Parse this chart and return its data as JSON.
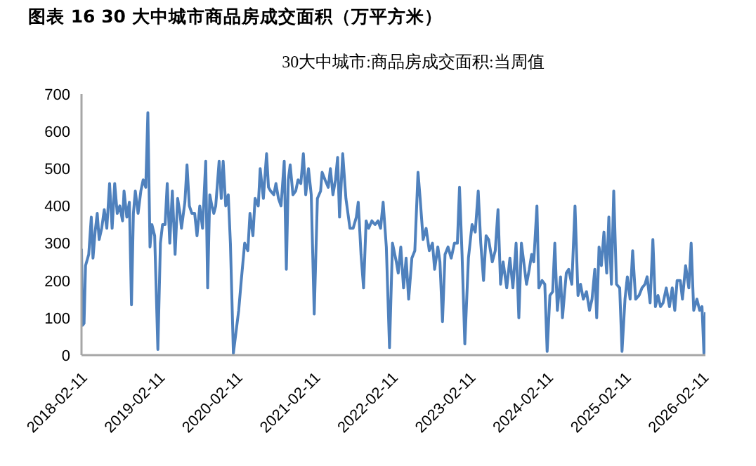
{
  "chart_data": {
    "type": "line",
    "title": "图表 16 30 大中城市商品房成交面积（万平方米）",
    "subtitle": "30大中城市:商品房成交面积:当周值",
    "x": [
      "2018-02-11",
      "2018-02-16",
      "2018-02-23",
      "2018-03-02",
      "2018-03-17",
      "2018-03-29",
      "2018-04-06",
      "2018-04-16",
      "2018-04-26",
      "2018-05-05",
      "2018-05-17",
      "2018-05-29",
      "2018-06-10",
      "2018-06-23",
      "2018-07-05",
      "2018-07-17",
      "2018-07-29",
      "2018-08-10",
      "2018-08-23",
      "2018-08-30",
      "2018-09-12",
      "2018-09-24",
      "2018-10-04",
      "2018-10-13",
      "2018-10-22",
      "2018-11-04",
      "2018-11-17",
      "2018-11-28",
      "2018-12-10",
      "2018-12-20",
      "2018-12-30",
      "2019-01-08",
      "2019-01-21",
      "2019-02-05",
      "2019-02-17",
      "2019-02-27",
      "2019-03-11",
      "2019-03-21",
      "2019-04-02",
      "2019-04-14",
      "2019-04-27",
      "2019-05-09",
      "2019-05-20",
      "2019-05-27",
      "2019-06-12",
      "2019-06-22",
      "2019-07-03",
      "2019-07-15",
      "2019-07-28",
      "2019-08-08",
      "2019-08-21",
      "2019-09-03",
      "2019-09-18",
      "2019-09-27",
      "2019-10-07",
      "2019-10-17",
      "2019-10-26",
      "2019-11-04",
      "2019-11-20",
      "2019-11-30",
      "2019-12-09",
      "2019-12-21",
      "2020-01-02",
      "2020-01-12",
      "2020-01-26",
      "2020-02-20",
      "2020-03-03",
      "2020-03-19",
      "2020-04-03",
      "2020-04-13",
      "2020-04-27",
      "2020-05-07",
      "2020-05-22",
      "2020-05-31",
      "2020-06-15",
      "2020-06-30",
      "2020-07-09",
      "2020-07-19",
      "2020-08-03",
      "2020-08-13",
      "2020-08-25",
      "2020-09-06",
      "2020-09-21",
      "2020-10-01",
      "2020-10-10",
      "2020-10-19",
      "2020-11-01",
      "2020-11-14",
      "2020-11-25",
      "2020-12-08",
      "2020-12-20",
      "2020-12-31",
      "2021-01-13",
      "2021-01-26",
      "2021-02-09",
      "2021-02-24",
      "2021-03-11",
      "2021-03-18",
      "2021-04-01",
      "2021-04-16",
      "2021-04-26",
      "2021-05-08",
      "2021-05-20",
      "2021-05-30",
      "2021-06-08",
      "2021-06-23",
      "2021-07-08",
      "2021-07-27",
      "2021-08-11",
      "2021-08-26",
      "2021-09-04",
      "2021-09-17",
      "2021-09-29",
      "2021-10-11",
      "2021-10-23",
      "2021-11-07",
      "2021-11-22",
      "2021-12-06",
      "2021-12-18",
      "2021-12-30",
      "2022-01-14",
      "2022-01-29",
      "2022-02-12",
      "2022-03-02",
      "2022-03-11",
      "2022-03-23",
      "2022-04-05",
      "2022-04-17",
      "2022-04-29",
      "2022-05-14",
      "2022-05-28",
      "2022-06-12",
      "2022-06-22",
      "2022-07-06",
      "2022-07-20",
      "2022-08-04",
      "2022-08-19",
      "2022-08-29",
      "2022-09-13",
      "2022-09-23",
      "2022-10-05",
      "2022-10-17",
      "2022-10-31",
      "2022-11-15",
      "2022-11-30",
      "2022-12-14",
      "2022-12-24",
      "2023-01-05",
      "2023-01-18",
      "2023-02-04",
      "2023-02-21",
      "2023-03-08",
      "2023-03-22",
      "2023-04-03",
      "2023-04-16",
      "2023-04-28",
      "2023-05-10",
      "2023-05-27",
      "2023-06-10",
      "2023-06-23",
      "2023-07-05",
      "2023-07-17",
      "2023-08-03",
      "2023-08-18",
      "2023-09-01",
      "2023-09-16",
      "2023-09-29",
      "2023-10-11",
      "2023-10-22",
      "2023-11-04",
      "2023-11-17",
      "2023-11-28",
      "2023-12-08",
      "2023-12-23",
      "2024-01-01",
      "2024-01-16",
      "2024-01-29",
      "2024-02-09",
      "2024-02-22",
      "2024-03-06",
      "2024-03-16",
      "2024-03-28",
      "2024-04-12",
      "2024-04-21",
      "2024-05-09",
      "2024-05-20",
      "2024-06-04",
      "2024-06-19",
      "2024-07-03",
      "2024-07-15",
      "2024-07-28",
      "2024-08-12",
      "2024-08-26",
      "2024-09-07",
      "2024-09-20",
      "2024-09-29",
      "2024-10-10",
      "2024-10-21",
      "2024-11-02",
      "2024-11-15",
      "2024-11-25",
      "2024-12-07",
      "2024-12-18",
      "2024-12-31",
      "2025-01-15",
      "2025-01-26",
      "2025-02-09",
      "2025-02-20",
      "2025-03-05",
      "2025-03-17",
      "2025-03-31",
      "2025-04-16",
      "2025-04-30",
      "2025-05-14",
      "2025-05-24",
      "2025-06-07",
      "2025-06-20",
      "2025-07-02",
      "2025-07-14",
      "2025-07-26",
      "2025-08-07",
      "2025-08-22",
      "2025-09-06",
      "2025-09-19",
      "2025-10-01",
      "2025-10-12",
      "2025-10-27",
      "2025-11-06",
      "2025-11-21",
      "2025-12-06",
      "2025-12-17",
      "2025-12-29",
      "2026-01-13",
      "2026-01-26",
      "2026-02-06",
      "2026-02-15",
      "2026-02-22"
    ],
    "series": [
      {
        "color": "#4f81bd",
        "values": [
          285,
          80,
          85,
          240,
          270,
          370,
          260,
          330,
          380,
          310,
          340,
          390,
          340,
          460,
          340,
          460,
          380,
          400,
          360,
          440,
          370,
          410,
          135,
          380,
          440,
          380,
          440,
          470,
          450,
          650,
          290,
          350,
          320,
          15,
          300,
          350,
          350,
          460,
          300,
          440,
          270,
          420,
          380,
          340,
          410,
          510,
          400,
          380,
          380,
          320,
          400,
          340,
          520,
          180,
          430,
          400,
          380,
          400,
          520,
          420,
          520,
          400,
          430,
          300,
          5,
          120,
          200,
          300,
          280,
          380,
          320,
          420,
          400,
          500,
          420,
          540,
          450,
          440,
          430,
          460,
          420,
          400,
          520,
          230,
          470,
          510,
          430,
          440,
          470,
          460,
          540,
          430,
          500,
          430,
          110,
          420,
          440,
          490,
          470,
          450,
          500,
          430,
          470,
          530,
          370,
          540,
          420,
          340,
          340,
          370,
          410,
          270,
          180,
          360,
          340,
          360,
          350,
          360,
          340,
          410,
          290,
          20,
          300,
          250,
          220,
          290,
          180,
          260,
          150,
          260,
          280,
          490,
          420,
          310,
          340,
          280,
          300,
          230,
          290,
          250,
          90,
          270,
          290,
          260,
          300,
          300,
          450,
          270,
          30,
          260,
          350,
          330,
          440,
          300,
          200,
          320,
          310,
          250,
          280,
          390,
          190,
          250,
          180,
          260,
          180,
          300,
          100,
          300,
          250,
          190,
          230,
          270,
          250,
          400,
          180,
          200,
          190,
          10,
          160,
          170,
          300,
          120,
          210,
          100,
          220,
          230,
          190,
          400,
          160,
          190,
          150,
          170,
          120,
          150,
          230,
          100,
          290,
          240,
          330,
          220,
          370,
          190,
          440,
          190,
          180,
          10,
          150,
          210,
          150,
          280,
          150,
          160,
          180,
          190,
          210,
          140,
          310,
          130,
          160,
          130,
          140,
          180,
          130,
          180,
          120,
          200,
          200,
          150,
          240,
          180,
          300,
          120,
          150,
          120,
          130,
          5,
          115
        ]
      }
    ],
    "xlim": [
      "2018-02-11",
      "2026-02-22"
    ],
    "xticks": [
      "2018-02-11",
      "2019-02-11",
      "2020-02-11",
      "2021-02-11",
      "2022-02-11",
      "2023-02-11",
      "2024-02-11",
      "2025-02-11",
      "2026-02-11"
    ],
    "ylim": [
      0,
      700
    ],
    "yticks": [
      0,
      100,
      200,
      300,
      400,
      500,
      600,
      700
    ]
  }
}
